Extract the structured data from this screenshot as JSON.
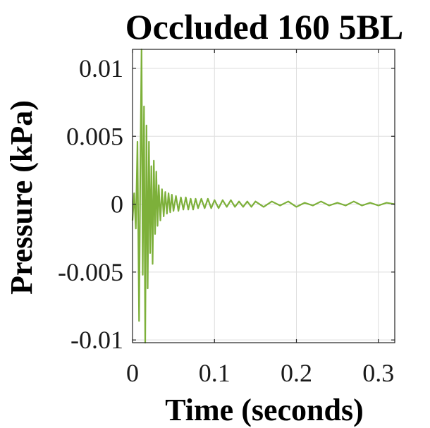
{
  "chart_data": {
    "type": "line",
    "title": "Occluded 160 5BL",
    "xlabel": "Time (seconds)",
    "ylabel": "Pressure (kPa)",
    "xlim": [
      0,
      0.32
    ],
    "ylim": [
      -0.0102,
      0.0114
    ],
    "xticks": [
      0,
      0.1,
      0.2,
      0.3
    ],
    "xtick_labels": [
      "0",
      "0.1",
      "0.2",
      "0.3"
    ],
    "yticks": [
      -0.01,
      -0.005,
      0,
      0.005,
      0.01
    ],
    "ytick_labels": [
      "-0.01",
      "-0.005",
      "0",
      "0.005",
      "0.01"
    ],
    "grid": true,
    "line_color": "#7db03a",
    "series": [
      {
        "x": [
          0,
          0.002,
          0.004,
          0.006,
          0.008,
          0.0095,
          0.011,
          0.0125,
          0.014,
          0.0155,
          0.017,
          0.0185,
          0.02,
          0.0215,
          0.023,
          0.0245,
          0.026,
          0.0275,
          0.029,
          0.0305,
          0.032,
          0.034,
          0.036,
          0.038,
          0.04,
          0.042,
          0.044,
          0.046,
          0.048,
          0.05,
          0.053,
          0.056,
          0.059,
          0.062,
          0.065,
          0.068,
          0.071,
          0.074,
          0.077,
          0.08,
          0.084,
          0.088,
          0.092,
          0.096,
          0.1,
          0.105,
          0.11,
          0.115,
          0.12,
          0.125,
          0.13,
          0.135,
          0.14,
          0.145,
          0.15,
          0.16,
          0.17,
          0.18,
          0.19,
          0.2,
          0.21,
          0.22,
          0.23,
          0.24,
          0.25,
          0.26,
          0.27,
          0.28,
          0.29,
          0.3,
          0.31,
          0.32
        ],
        "y": [
          -0.0012,
          0.0008,
          -0.0018,
          0.0046,
          -0.0086,
          0.0022,
          0.0114,
          -0.0052,
          0.0072,
          -0.0102,
          0.0058,
          -0.0062,
          0.0046,
          -0.0036,
          0.0028,
          -0.0044,
          0.0032,
          -0.0022,
          0.0024,
          -0.0016,
          0.0014,
          -0.0012,
          0.0011,
          -0.0009,
          0.0009,
          -0.0007,
          0.0008,
          -0.0006,
          0.0007,
          -0.0005,
          0.0006,
          -0.0005,
          0.0005,
          -0.0004,
          0.0005,
          -0.0004,
          0.0004,
          -0.0004,
          0.0004,
          -0.0003,
          0.0004,
          -0.0003,
          0.0004,
          -0.0003,
          0.0003,
          -0.0003,
          0.0003,
          -0.0002,
          0.0003,
          -0.0002,
          0.0002,
          -0.0002,
          0.0002,
          -0.0002,
          0.0002,
          -0.0002,
          0.0002,
          -0.0001,
          0.0002,
          -0.0002,
          0.0001,
          -0.0001,
          0.0002,
          -0.0001,
          0.0001,
          -0.0001,
          0.0002,
          -0.0001,
          0.0001,
          -0.0001,
          0.0001,
          0.0
        ]
      }
    ]
  }
}
